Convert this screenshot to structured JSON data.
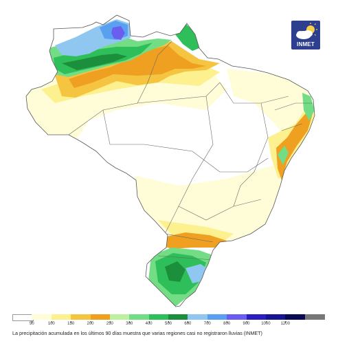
{
  "logo": {
    "text": "INMET",
    "icon": "cloud-sun-icon"
  },
  "legend": {
    "colors": [
      "#ffffff",
      "#fffdd8",
      "#fdf08f",
      "#f5c542",
      "#f0a020",
      "#bdf0a0",
      "#72dd84",
      "#2fbf5a",
      "#1c8f3c",
      "#8fc7f0",
      "#5aa0f0",
      "#6a5df0",
      "#2b1fc0",
      "#16168f",
      "#0b0b55",
      "#777777"
    ],
    "labels": [
      "50",
      "100",
      "150",
      "200",
      "250",
      "300",
      "400",
      "500",
      "600",
      "700",
      "800",
      "900",
      "1000",
      "1200"
    ]
  },
  "caption": "La precipitación acumulada en los últimos 90 días muestra que varias regiones casi no registraron lluvias (INMET)"
}
